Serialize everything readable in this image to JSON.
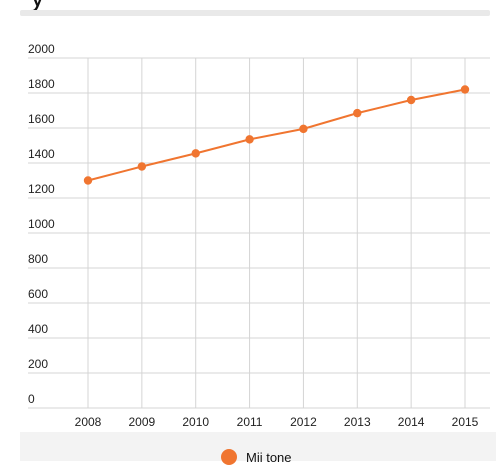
{
  "header": {
    "title_fragment": "y"
  },
  "chart_data": {
    "type": "line",
    "title": "",
    "xlabel": "",
    "ylabel": "",
    "categories": [
      "2008",
      "2009",
      "2010",
      "2011",
      "2012",
      "2013",
      "2014",
      "2015"
    ],
    "series": [
      {
        "name": "Mii tone",
        "values": [
          1300,
          1380,
          1455,
          1535,
          1595,
          1685,
          1760,
          1820
        ],
        "color": "#f07530"
      }
    ],
    "ylim": [
      0,
      2000
    ],
    "yticks": [
      "0",
      "200",
      "400",
      "600",
      "800",
      "1000",
      "1200",
      "1400",
      "1600",
      "1800",
      "2000"
    ],
    "grid": true,
    "legend_position": "bottom-center"
  }
}
